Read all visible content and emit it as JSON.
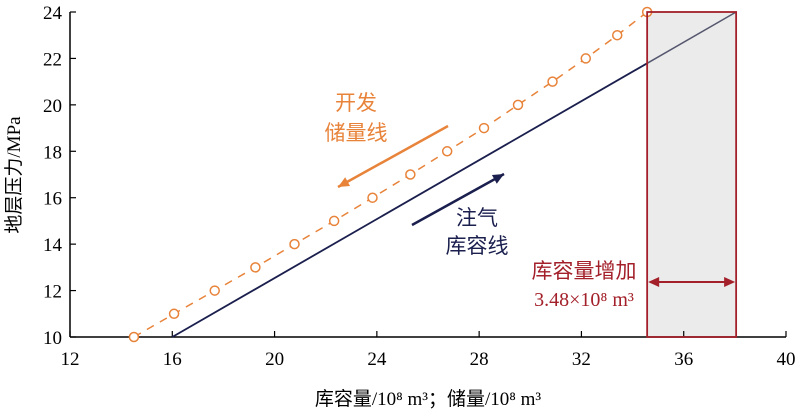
{
  "chart_data": {
    "type": "line",
    "title": "",
    "xlabel": "库容量/10⁸ m³；储量/10⁸ m³",
    "ylabel": "地层压力/MPa",
    "xlim": [
      12,
      40
    ],
    "ylim": [
      10,
      24
    ],
    "xticks": [
      12,
      16,
      20,
      24,
      28,
      32,
      36,
      40
    ],
    "yticks": [
      10,
      12,
      14,
      16,
      18,
      20,
      22,
      24
    ],
    "grid": false,
    "series": [
      {
        "name": "开发储量线",
        "style": "dashed-circle",
        "color": "#E8833A",
        "x": [
          14.5,
          16.07,
          17.66,
          19.25,
          20.78,
          22.33,
          23.83,
          25.31,
          26.75,
          28.19,
          29.52,
          30.87,
          32.17,
          33.4,
          34.57
        ],
        "y": [
          10,
          11,
          12,
          13,
          14,
          15,
          16,
          17,
          18,
          19,
          20,
          21,
          22,
          23,
          24
        ]
      },
      {
        "name": "注气库容线",
        "style": "solid",
        "color": "#1B1F4E",
        "x": [
          16.0,
          38.05
        ],
        "y": [
          10,
          24
        ]
      }
    ],
    "highlight_region": {
      "x": [
        34.57,
        38.05
      ],
      "y": [
        10,
        24
      ],
      "fill": "#EBEBEB",
      "stroke": "#A3202A"
    },
    "annotations": {
      "dev_label_line1": "开发",
      "dev_label_line2": "储量线",
      "inj_label_line1": "注气",
      "inj_label_line2": "库容线",
      "increase_label": "库容量增加",
      "increase_value": "3.48×10⁸ m³",
      "increase_arrow_y": 12.37
    }
  }
}
